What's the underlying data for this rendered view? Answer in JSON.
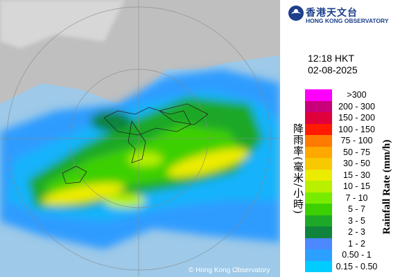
{
  "header": {
    "logo_chinese": "香港天文台",
    "logo_english": "HONG KONG OBSERVATORY"
  },
  "time": "12:18 HKT",
  "date": "02-08-2025",
  "legend": {
    "title_chinese": "降雨率(毫米/小時)",
    "title_english": "Rainfall Rate (mm/h)",
    "items": [
      {
        "label": ">300",
        "color": "#ff00ff"
      },
      {
        "label": "200 - 300",
        "color": "#c8007a"
      },
      {
        "label": "150 - 200",
        "color": "#e0003c"
      },
      {
        "label": "100 - 150",
        "color": "#ff1a00"
      },
      {
        "label": "75 - 100",
        "color": "#ff7a00"
      },
      {
        "label": "50 - 75",
        "color": "#ffa800"
      },
      {
        "label": "30 - 50",
        "color": "#f8c800"
      },
      {
        "label": "15 - 30",
        "color": "#ecec00"
      },
      {
        "label": "10 - 15",
        "color": "#b8f000"
      },
      {
        "label": "7 - 10",
        "color": "#78ec00"
      },
      {
        "label": "5 - 7",
        "color": "#3cd000"
      },
      {
        "label": "3 - 5",
        "color": "#1ea828"
      },
      {
        "label": "2 - 3",
        "color": "#10843c"
      },
      {
        "label": "1 - 2",
        "color": "#4c88ff"
      },
      {
        "label": "0.50 - 1",
        "color": "#2ca0ff"
      },
      {
        "label": "0.15 - 0.50",
        "color": "#00ccff"
      }
    ]
  },
  "copyright": "© Hong Kong Observatory"
}
